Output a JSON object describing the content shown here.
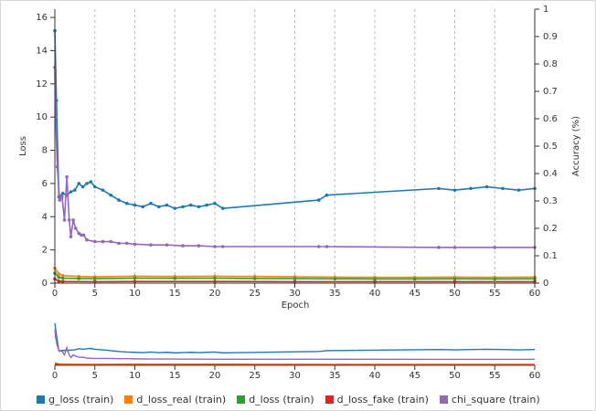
{
  "chart_data": [
    {
      "type": "line",
      "xlabel": "Epoch",
      "ylabel": "Loss",
      "y2label": "Accuracy (%)",
      "xlim": [
        0,
        60
      ],
      "ylim": [
        0,
        16.5
      ],
      "y2lim": [
        0,
        1
      ],
      "x_ticks": [
        0,
        5,
        10,
        15,
        20,
        25,
        30,
        35,
        40,
        45,
        50,
        55,
        60
      ],
      "y_ticks": [
        0,
        2,
        4,
        6,
        8,
        10,
        12,
        14,
        16
      ],
      "y2_ticks": [
        0,
        0.1,
        0.2,
        0.3,
        0.4,
        0.5,
        0.6,
        0.7,
        0.8,
        0.9,
        1
      ],
      "grid": "vertical dashed",
      "legend_position": "bottom",
      "series": [
        {
          "name": "g_loss (train)",
          "color": "#1f77b4",
          "x": [
            0,
            0.2,
            0.5,
            1,
            1.5,
            2,
            2.5,
            3,
            3.5,
            4,
            4.5,
            5,
            6,
            7,
            8,
            9,
            10,
            11,
            12,
            13,
            14,
            15,
            16,
            17,
            18,
            19,
            20,
            21,
            33,
            34,
            48,
            50,
            52,
            54,
            56,
            58,
            60
          ],
          "y": [
            15.2,
            11,
            5.2,
            5.4,
            5.3,
            5.5,
            5.6,
            6.0,
            5.8,
            6.0,
            6.1,
            5.8,
            5.6,
            5.3,
            5.0,
            4.8,
            4.7,
            4.6,
            4.8,
            4.6,
            4.7,
            4.5,
            4.6,
            4.7,
            4.6,
            4.7,
            4.8,
            4.5,
            5.0,
            5.3,
            5.7,
            5.6,
            5.7,
            5.8,
            5.7,
            5.6,
            5.7
          ]
        },
        {
          "name": "d_loss_real (train)",
          "color": "#ff7f0e",
          "x": [
            0,
            0.5,
            1,
            3,
            5,
            10,
            15,
            20,
            25,
            30,
            35,
            40,
            45,
            50,
            55,
            60
          ],
          "y": [
            0.9,
            0.55,
            0.45,
            0.4,
            0.38,
            0.42,
            0.4,
            0.42,
            0.4,
            0.38,
            0.36,
            0.35,
            0.35,
            0.36,
            0.35,
            0.36
          ]
        },
        {
          "name": "d_loss (train)",
          "color": "#2ca02c",
          "x": [
            0,
            0.5,
            1,
            3,
            5,
            10,
            15,
            20,
            25,
            30,
            35,
            40,
            45,
            50,
            55,
            60
          ],
          "y": [
            0.6,
            0.35,
            0.3,
            0.28,
            0.27,
            0.3,
            0.29,
            0.3,
            0.28,
            0.27,
            0.26,
            0.25,
            0.25,
            0.26,
            0.25,
            0.26
          ]
        },
        {
          "name": "d_loss_fake (train)",
          "color": "#d62728",
          "x": [
            0,
            0.5,
            1,
            5,
            10,
            20,
            30,
            40,
            50,
            60
          ],
          "y": [
            0.25,
            0.12,
            0.1,
            0.09,
            0.1,
            0.1,
            0.09,
            0.09,
            0.09,
            0.09
          ]
        },
        {
          "name": "chi_square (train)",
          "color": "#9467bd",
          "x": [
            0,
            0.1,
            0.3,
            0.6,
            0.9,
            1.2,
            1.5,
            1.8,
            2.0,
            2.3,
            2.6,
            3.0,
            3.3,
            3.6,
            4,
            5,
            6,
            7,
            8,
            9,
            10,
            12,
            14,
            16,
            18,
            20,
            21,
            33,
            34,
            48,
            50,
            55,
            60
          ],
          "y": [
            13,
            10,
            7.0,
            5.0,
            5.2,
            3.8,
            6.4,
            3.8,
            2.8,
            3.8,
            3.3,
            3.0,
            2.9,
            2.9,
            2.6,
            2.5,
            2.5,
            2.5,
            2.4,
            2.4,
            2.35,
            2.3,
            2.3,
            2.25,
            2.25,
            2.2,
            2.2,
            2.2,
            2.2,
            2.15,
            2.15,
            2.15,
            2.15
          ]
        }
      ]
    },
    {
      "type": "line",
      "role": "overview",
      "xlim": [
        0,
        60
      ],
      "x_ticks": [
        0,
        5,
        10,
        15,
        20,
        25,
        30,
        35,
        40,
        45,
        50,
        55,
        60
      ]
    }
  ]
}
